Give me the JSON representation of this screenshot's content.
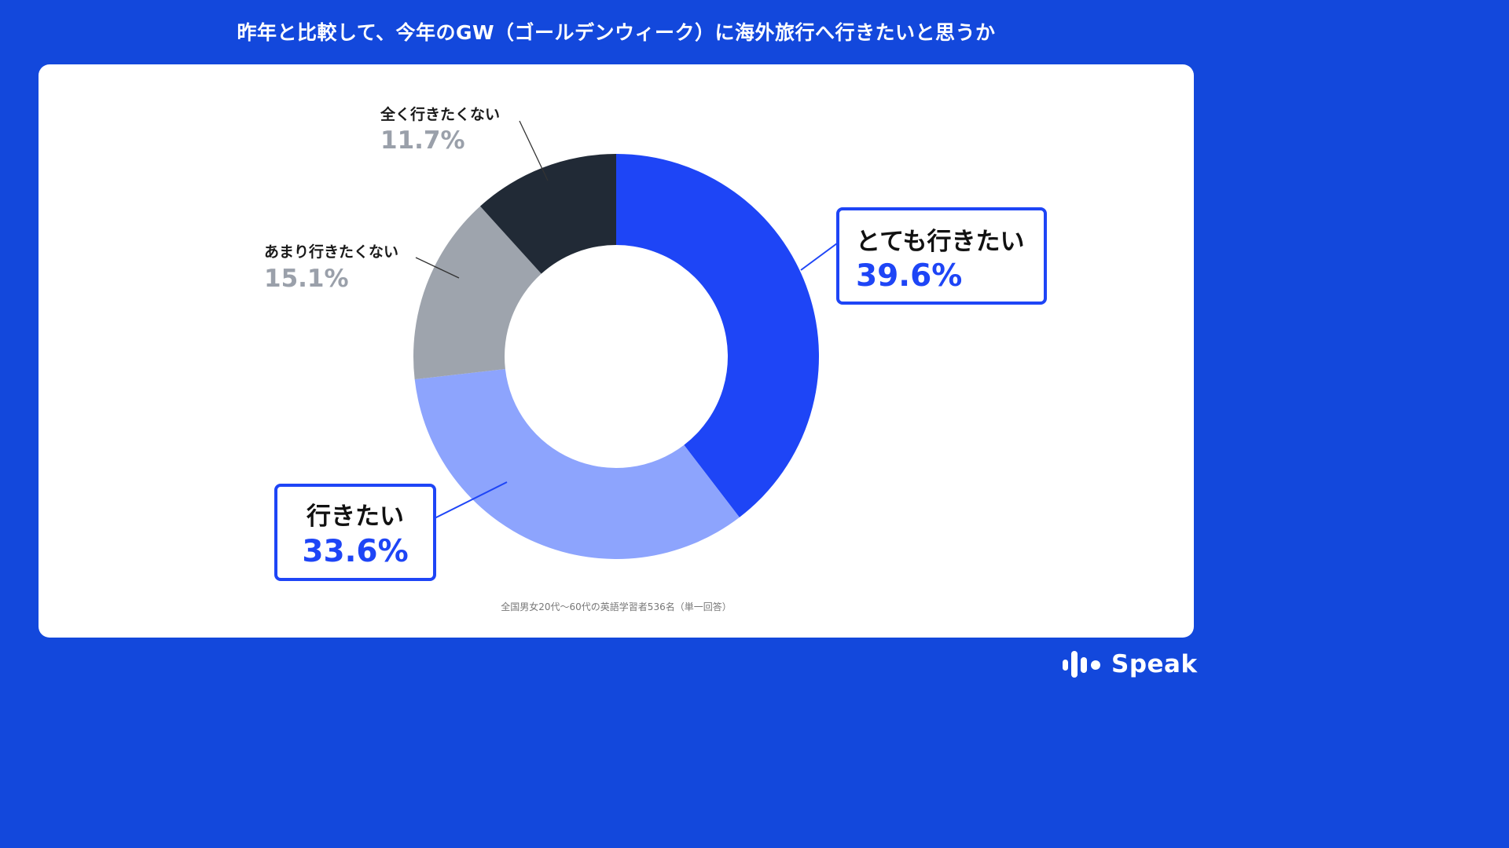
{
  "title": "昨年と比較して、今年のGW（ゴールデンウィーク）に海外旅行へ行きたいと思うか",
  "note": "全国男女20代〜60代の英語学習者536名（単一回答）",
  "logo": {
    "text": "Speak",
    "icon": "speak-waveform-icon"
  },
  "colors": {
    "background": "#1348dc",
    "highlight": "#1e45f6"
  },
  "chart_data": {
    "type": "pie",
    "donut": true,
    "unit": "%",
    "slices": [
      {
        "label": "とても行きたい",
        "value": 39.6,
        "display": "39.6%",
        "color": "#1e45f6",
        "highlight": true
      },
      {
        "label": "行きたい",
        "value": 33.6,
        "display": "33.6%",
        "color": "#8da4fd",
        "highlight": true
      },
      {
        "label": "あまり行きたくない",
        "value": 15.1,
        "display": "15.1%",
        "color": "#9ea4ad",
        "highlight": false
      },
      {
        "label": "全く行きたくない",
        "value": 11.7,
        "display": "11.7%",
        "color": "#212a36",
        "highlight": false
      }
    ]
  }
}
